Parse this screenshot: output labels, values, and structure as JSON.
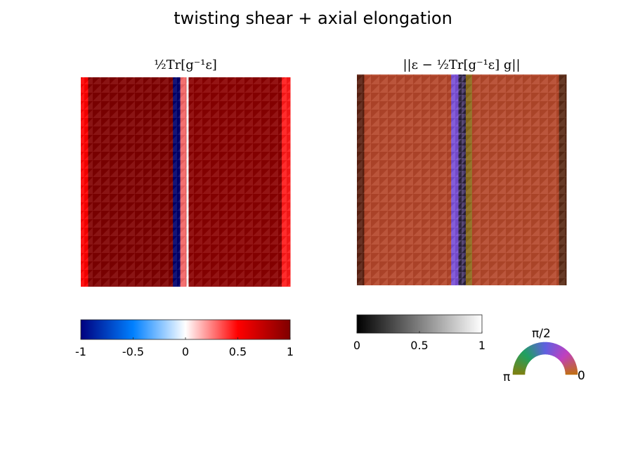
{
  "title": "twisting shear + axial elongation",
  "panels": [
    {
      "title": "½Tr[g⁻¹ε]",
      "type": "heatmap",
      "colormap": {
        "name": "blue-white-red",
        "range": [
          -1,
          1
        ],
        "ticks": [
          "-1",
          "-0.5",
          "0",
          "0.5",
          "1"
        ],
        "colors": [
          "#00007f",
          "#0080ff",
          "#ffffff",
          "#ff0000",
          "#7f0000"
        ]
      },
      "stripes": [
        {
          "from": 0.0,
          "to": 0.035,
          "color": "#ff0000"
        },
        {
          "from": 0.035,
          "to": 0.44,
          "color": "#800000"
        },
        {
          "from": 0.44,
          "to": 0.475,
          "color": "#00006b"
        },
        {
          "from": 0.475,
          "to": 0.505,
          "color": "#f26464"
        },
        {
          "from": 0.505,
          "to": 0.515,
          "color": "#ffffff"
        },
        {
          "from": 0.515,
          "to": 0.96,
          "color": "#8b0000"
        },
        {
          "from": 0.96,
          "to": 1.0,
          "color": "#ff1a1a"
        }
      ]
    },
    {
      "title": "||ε − ½Tr[g⁻¹ε] g||",
      "type": "heatmap",
      "colormap": {
        "name": "gray",
        "range": [
          0,
          1
        ],
        "ticks": [
          "0",
          "0.5",
          "1"
        ],
        "colors": [
          "#000000",
          "#ffffff"
        ]
      },
      "stripes": [
        {
          "from": 0.0,
          "to": 0.035,
          "color": "#5a2010"
        },
        {
          "from": 0.035,
          "to": 0.45,
          "color": "#b5462a"
        },
        {
          "from": 0.45,
          "to": 0.485,
          "color": "#7a4fd6"
        },
        {
          "from": 0.485,
          "to": 0.52,
          "color": "#4a3a6a"
        },
        {
          "from": 0.52,
          "to": 0.55,
          "color": "#8a6a1a"
        },
        {
          "from": 0.55,
          "to": 0.965,
          "color": "#b5482b"
        },
        {
          "from": 0.965,
          "to": 1.0,
          "color": "#5a2a15"
        }
      ]
    }
  ],
  "direction_wheel": {
    "labels": {
      "top": "π/2",
      "left": "π",
      "right": "0"
    },
    "colors": [
      "#c07010",
      "#c040c0",
      "#6060e0",
      "#20a060",
      "#808010"
    ]
  }
}
